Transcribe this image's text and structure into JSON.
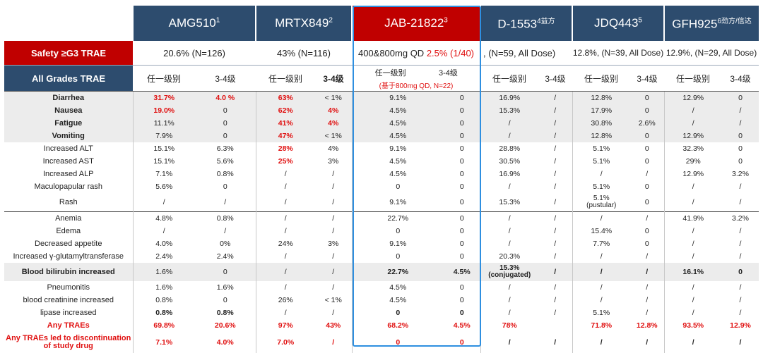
{
  "drugs": [
    {
      "name": "AMG510",
      "sup": "1"
    },
    {
      "name": "MRTX849",
      "sup": "2"
    },
    {
      "name": "JAB-21822",
      "sup": "3"
    },
    {
      "name": "D-1553",
      "sup": "4益方"
    },
    {
      "name": "JDQ443",
      "sup": "5"
    },
    {
      "name": "GFH925",
      "sup": "6劲方/信达"
    }
  ],
  "safety": {
    "label": "Safety ≥G3 TRAE",
    "amg": "20.6% (N=126)",
    "mrtx": "43% (N=116)",
    "jab_prefix": "400&800mg QD ",
    "jab_red": "2.5% (1/40)",
    "d1553": ", (N=59, All Dose)",
    "jdq": "12.8%, (N=39, All Dose)",
    "gfh": "12.9%, (N=29, All Dose)"
  },
  "all_grades": {
    "label": "All Grades TRAE",
    "any_grade": "任一级别",
    "grade34": "3-4级",
    "jab_note": "(基于800mg QD, N=22)"
  },
  "rows": [
    {
      "name": "Diarrhea",
      "v": [
        "31.7%",
        "4.0 %",
        "63%",
        "< 1%",
        "9.1%",
        "0",
        "16.9%",
        "/",
        "12.8%",
        "0",
        "12.9%",
        "0"
      ]
    },
    {
      "name": "Nausea",
      "v": [
        "19.0%",
        "0",
        "62%",
        "4%",
        "4.5%",
        "0",
        "15.3%",
        "/",
        "17.9%",
        "0",
        "/",
        "/"
      ]
    },
    {
      "name": "Fatigue",
      "v": [
        "11.1%",
        "0",
        "41%",
        "4%",
        "4.5%",
        "0",
        "/",
        "/",
        "30.8%",
        "2.6%",
        "/",
        "/"
      ]
    },
    {
      "name": "Vomiting",
      "v": [
        "7.9%",
        "0",
        "47%",
        "< 1%",
        "4.5%",
        "0",
        "/",
        "/",
        "12.8%",
        "0",
        "12.9%",
        "0"
      ]
    },
    {
      "name": "Increased ALT",
      "v": [
        "15.1%",
        "6.3%",
        "28%",
        "4%",
        "9.1%",
        "0",
        "28.8%",
        "/",
        "5.1%",
        "0",
        "32.3%",
        "0"
      ]
    },
    {
      "name": "Increased AST",
      "v": [
        "15.1%",
        "5.6%",
        "25%",
        "3%",
        "4.5%",
        "0",
        "30.5%",
        "/",
        "5.1%",
        "0",
        "29%",
        "0"
      ]
    },
    {
      "name": "Increased ALP",
      "v": [
        "7.1%",
        "0.8%",
        "/",
        "/",
        "4.5%",
        "0",
        "16.9%",
        "/",
        "/",
        "/",
        "12.9%",
        "3.2%"
      ]
    },
    {
      "name": "Maculopapular rash",
      "v": [
        "5.6%",
        "0",
        "/",
        "/",
        "0",
        "0",
        "/",
        "/",
        "5.1%",
        "0",
        "/",
        "/"
      ]
    },
    {
      "name": "Rash",
      "v": [
        "/",
        "/",
        "/",
        "/",
        "9.1%",
        "0",
        "15.3%",
        "/",
        "5.1%",
        "0",
        "/",
        "/"
      ],
      "jdq_note": "(pustular)"
    },
    {
      "name": "Anemia",
      "v": [
        "4.8%",
        "0.8%",
        "/",
        "/",
        "22.7%",
        "0",
        "/",
        "/",
        "/",
        "/",
        "41.9%",
        "3.2%"
      ]
    },
    {
      "name": "Edema",
      "v": [
        "/",
        "/",
        "/",
        "/",
        "0",
        "0",
        "/",
        "/",
        "15.4%",
        "0",
        "/",
        "/"
      ]
    },
    {
      "name": "Decreased appetite",
      "v": [
        "4.0%",
        "0%",
        "24%",
        "3%",
        "9.1%",
        "0",
        "/",
        "/",
        "7.7%",
        "0",
        "/",
        "/"
      ]
    },
    {
      "name": "Increased γ-glutamyltransferase",
      "v": [
        "2.4%",
        "2.4%",
        "/",
        "/",
        "0",
        "0",
        "20.3%",
        "/",
        "/",
        "/",
        "/",
        "/"
      ]
    },
    {
      "name": "Blood bilirubin increased",
      "v": [
        "1.6%",
        "0",
        "/",
        "/",
        "22.7%",
        "4.5%",
        "15.3%",
        "/",
        "/",
        "/",
        "16.1%",
        "0"
      ],
      "d1553_note": "(conjugated)"
    },
    {
      "name": "Pneumonitis",
      "v": [
        "1.6%",
        "1.6%",
        "/",
        "/",
        "4.5%",
        "0",
        "/",
        "/",
        "/",
        "/",
        "/",
        "/"
      ]
    },
    {
      "name": "blood creatinine increased",
      "v": [
        "0.8%",
        "0",
        "26%",
        "< 1%",
        "4.5%",
        "0",
        "/",
        "/",
        "/",
        "/",
        "/",
        "/"
      ]
    },
    {
      "name": "lipase increased",
      "v": [
        "0.8%",
        "0.8%",
        "/",
        "/",
        "0",
        "0",
        "/",
        "/",
        "5.1%",
        "/",
        "/",
        "/"
      ]
    },
    {
      "name": "Any TRAEs",
      "v": [
        "69.8%",
        "20.6%",
        "97%",
        "43%",
        "68.2%",
        "4.5%",
        "78%",
        "",
        "71.8%",
        "12.8%",
        "93.5%",
        "12.9%"
      ]
    },
    {
      "name": "Any TRAEs led to discontinuation of study drug",
      "v": [
        "7.1%",
        "4.0%",
        "7.0%",
        "/",
        "0",
        "0",
        "/",
        "/",
        "/",
        "/",
        "/",
        "/"
      ]
    }
  ],
  "colors": {
    "header_blue": "#2d4c6e",
    "accent_red": "#c00000",
    "value_red": "#e01010",
    "frame_blue": "#2e8fe0"
  }
}
